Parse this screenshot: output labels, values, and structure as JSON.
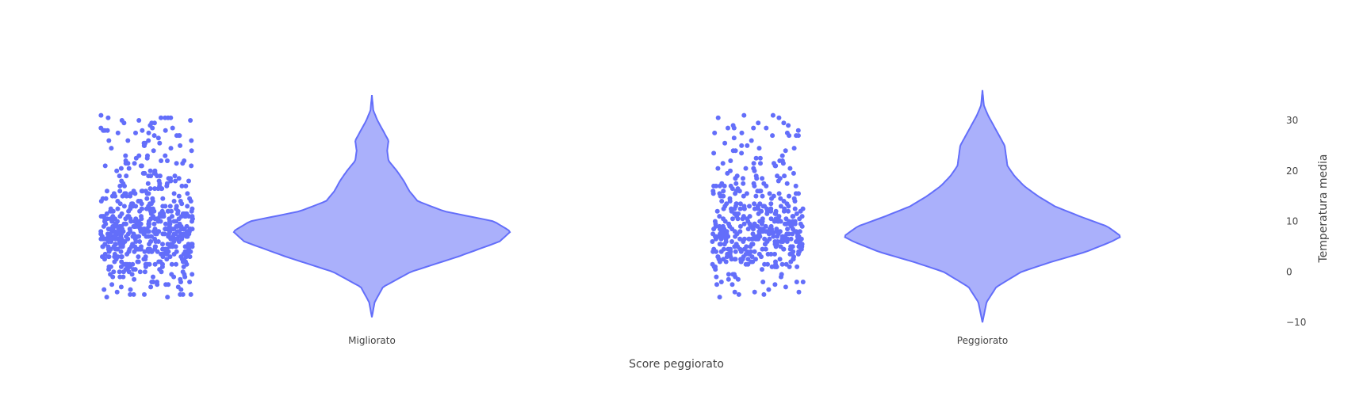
{
  "chart_data": {
    "type": "violin",
    "xlabel": "Score peggiorato",
    "ylabel": "Temperatura media",
    "categories": [
      "Migliorato",
      "Peggiorato"
    ],
    "yaxis": {
      "side": "right",
      "ticks": [
        -10,
        0,
        10,
        20,
        30
      ],
      "ylim": [
        -12,
        38
      ]
    },
    "violin_color": "#636efa",
    "violin_fill": "#aab0fb",
    "point_color": "#636efa",
    "points": "all",
    "series": [
      {
        "category": "Migliorato",
        "range": [
          -9,
          35
        ],
        "density": [
          [
            -9,
            0.0
          ],
          [
            -6,
            0.02
          ],
          [
            -3,
            0.08
          ],
          [
            0,
            0.28
          ],
          [
            3,
            0.62
          ],
          [
            6,
            0.92
          ],
          [
            8,
            1.0
          ],
          [
            10,
            0.88
          ],
          [
            12,
            0.52
          ],
          [
            14,
            0.33
          ],
          [
            16,
            0.27
          ],
          [
            18,
            0.23
          ],
          [
            20,
            0.18
          ],
          [
            22,
            0.12
          ],
          [
            24,
            0.11
          ],
          [
            26,
            0.12
          ],
          [
            28,
            0.08
          ],
          [
            30,
            0.04
          ],
          [
            32,
            0.01
          ],
          [
            35,
            0.0
          ]
        ],
        "observations": {
          "count": 600,
          "min": -5,
          "max": 31,
          "mode": 8
        }
      },
      {
        "category": "Peggiorato",
        "range": [
          -10,
          36
        ],
        "density": [
          [
            -10,
            0.0
          ],
          [
            -6,
            0.03
          ],
          [
            -3,
            0.1
          ],
          [
            0,
            0.28
          ],
          [
            2,
            0.5
          ],
          [
            4,
            0.75
          ],
          [
            6,
            0.93
          ],
          [
            7,
            1.0
          ],
          [
            9,
            0.9
          ],
          [
            11,
            0.7
          ],
          [
            13,
            0.52
          ],
          [
            15,
            0.4
          ],
          [
            17,
            0.3
          ],
          [
            19,
            0.23
          ],
          [
            21,
            0.18
          ],
          [
            23,
            0.17
          ],
          [
            25,
            0.16
          ],
          [
            27,
            0.12
          ],
          [
            29,
            0.08
          ],
          [
            31,
            0.04
          ],
          [
            33,
            0.01
          ],
          [
            36,
            0.0
          ]
        ],
        "observations": {
          "count": 450,
          "min": -5,
          "max": 31,
          "mode": 7
        }
      }
    ]
  }
}
